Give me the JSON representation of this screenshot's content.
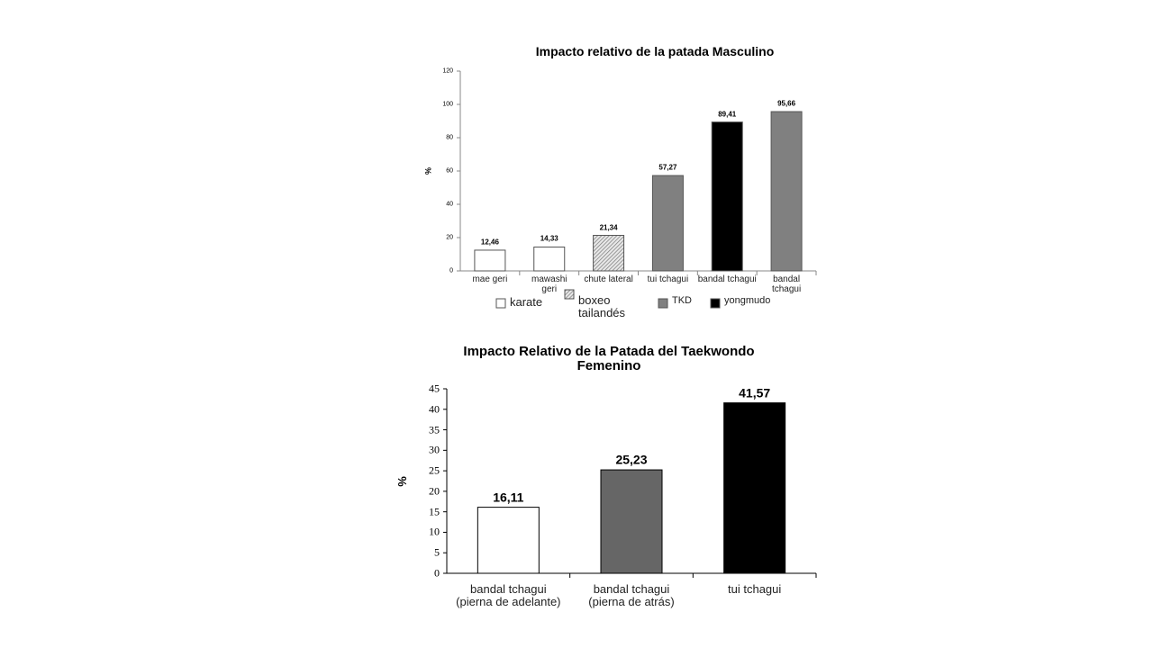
{
  "chart_data": [
    {
      "type": "bar",
      "title": "Impacto relativo de la patada Masculino",
      "y_label": "%",
      "categories": [
        "mae geri",
        "mawashi\ngeri",
        "chute lateral",
        "tui tchagui",
        "bandal tchagui",
        "bandal\ntchagui"
      ],
      "values": [
        12.46,
        14.33,
        21.34,
        57.27,
        89.41,
        95.66
      ],
      "value_labels": [
        "12,46",
        "14,33",
        "21,34",
        "57,27",
        "89,41",
        "95,66"
      ],
      "colors": [
        "#ffffff",
        "#ffffff",
        "hatch",
        "#808080",
        "#000000",
        "#808080"
      ],
      "legend": [
        {
          "name": "karate",
          "color": "#ffffff"
        },
        {
          "name": "boxeo\ntailandés",
          "color": "hatch"
        },
        {
          "name": "TKD",
          "color": "#808080"
        },
        {
          "name": "yongmudo",
          "color": "#000000"
        }
      ],
      "ylim": [
        0,
        120
      ],
      "yticks": [
        0,
        20,
        40,
        60,
        80,
        100,
        120
      ]
    },
    {
      "type": "bar",
      "title": "Impacto Relativo de la Patada del Taekwondo\nFemenino",
      "y_label": "%",
      "categories": [
        "bandal tchagui\n(pierna de adelante)",
        "bandal tchagui\n(pierna de atrás)",
        "tui tchagui"
      ],
      "values": [
        16.11,
        25.23,
        41.57
      ],
      "value_labels": [
        "16,11",
        "25,23",
        "41,57"
      ],
      "colors": [
        "#ffffff",
        "#666666",
        "#000000"
      ],
      "ylim": [
        0,
        45
      ],
      "yticks": [
        0,
        5,
        10,
        15,
        20,
        25,
        30,
        35,
        40,
        45
      ]
    }
  ]
}
